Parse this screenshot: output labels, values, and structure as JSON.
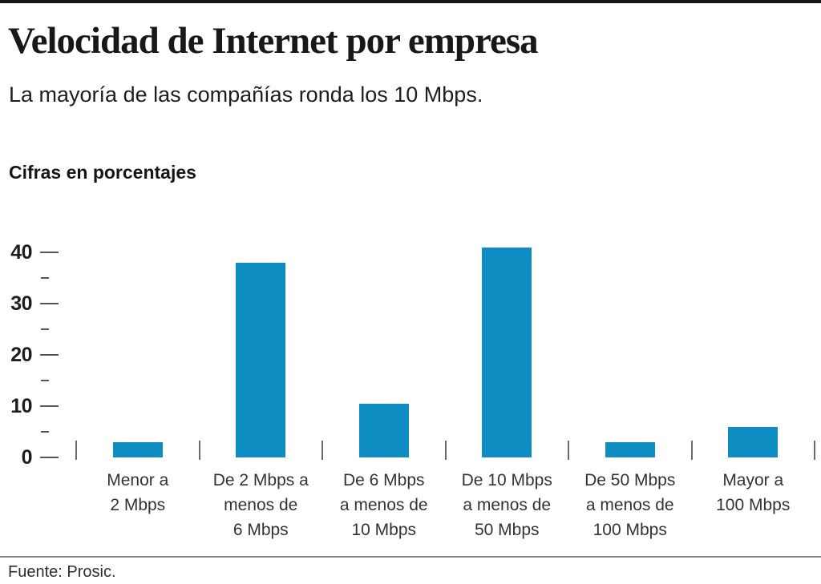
{
  "header": {
    "title": "Velocidad de Internet por empresa",
    "subtitle": "La mayoría de las compañías ronda los 10 Mbps.",
    "units_note": "Cifras en porcentajes"
  },
  "footer": {
    "source": "Fuente: Prosic."
  },
  "chart_data": {
    "type": "bar",
    "title": "Velocidad de Internet por empresa",
    "subtitle": "La mayoría de las compañías ronda los 10 Mbps.",
    "units_note": "Cifras en porcentajes",
    "source": "Fuente: Prosic.",
    "categories": [
      "Menor a 2 Mbps",
      "De 2 Mbps a menos de 6 Mbps",
      "De 6 Mbps a menos de 10 Mbps",
      "De 10 Mbps a menos de 50 Mbps",
      "De 50 Mbps a menos de 100 Mbps",
      "Mayor a 100 Mbps"
    ],
    "categories_lines": [
      [
        "Menor a",
        "2 Mbps"
      ],
      [
        "De 2 Mbps a",
        "menos de",
        "6 Mbps"
      ],
      [
        "De 6 Mbps",
        "a menos de",
        "10 Mbps"
      ],
      [
        "De 10 Mbps",
        "a menos de",
        "50 Mbps"
      ],
      [
        "De 50 Mbps",
        "a menos de",
        "100 Mbps"
      ],
      [
        "Mayor a",
        "100 Mbps"
      ]
    ],
    "values": [
      3,
      38,
      10.5,
      41,
      3,
      6
    ],
    "xlabel": "",
    "ylabel": "",
    "ylim": [
      0,
      44
    ],
    "yticks_major": [
      0,
      10,
      20,
      30,
      40
    ],
    "yticks_minor": [
      5,
      15,
      25,
      35
    ],
    "grid": false,
    "legend": "none",
    "colors": {
      "bar": "#0e8dc2",
      "axis_tick": "#55565a",
      "category_tick": "#6a6b6e",
      "top_bar": "#161616",
      "footer_rule": "#85878a",
      "text": "#1e1e1e"
    }
  }
}
